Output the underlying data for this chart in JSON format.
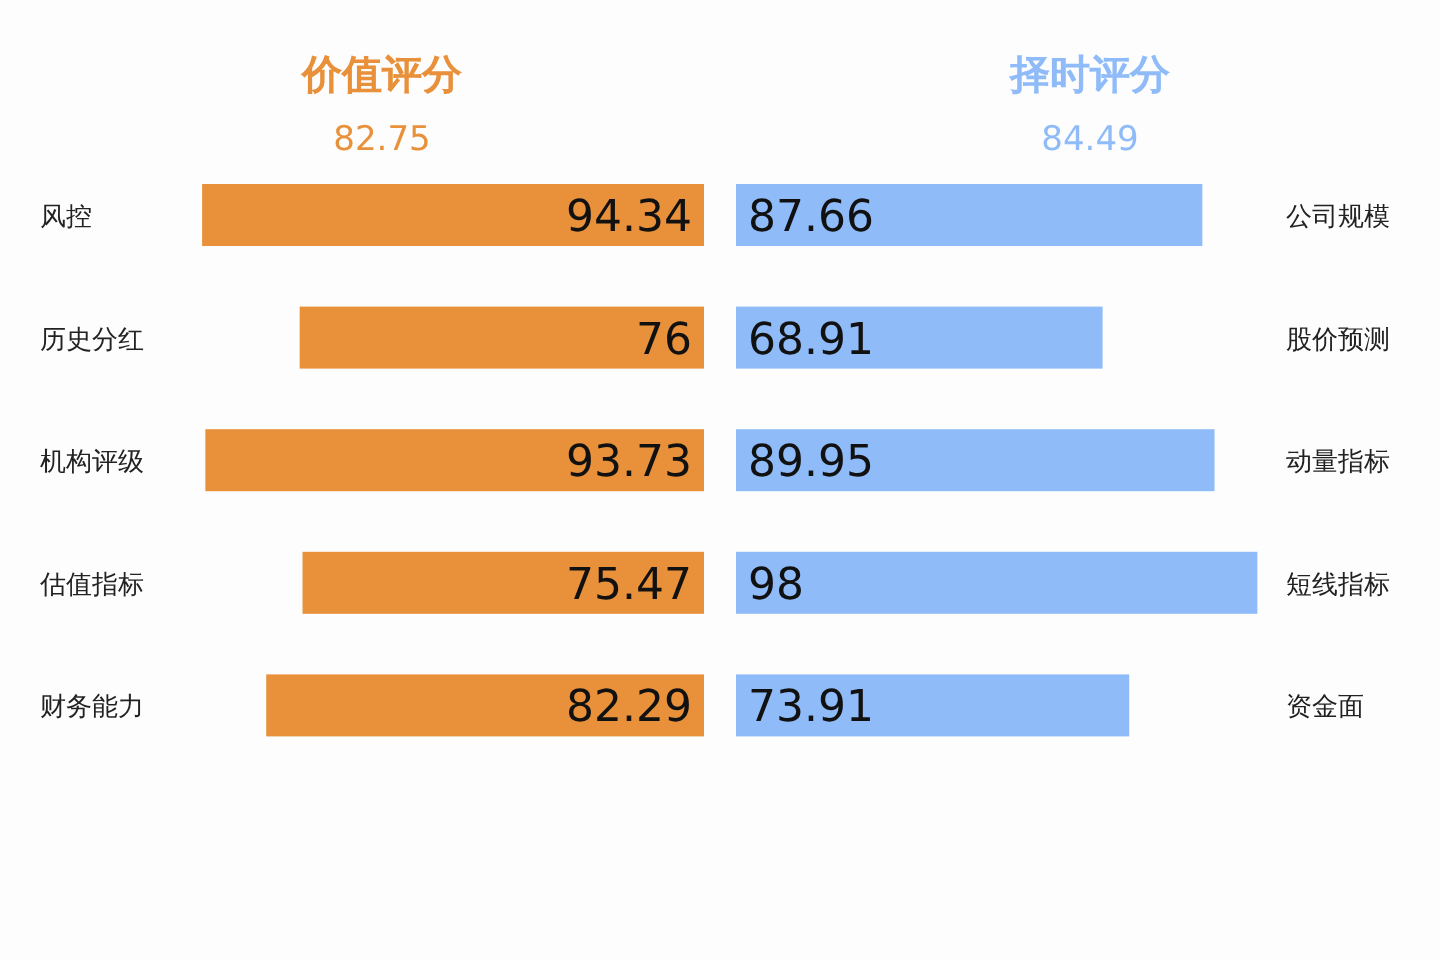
{
  "chart_data": [
    {
      "type": "bar",
      "orientation": "horizontal",
      "title": "价值评分",
      "subtitle": "82.75",
      "categories": [
        "风控",
        "历史分红",
        "机构评级",
        "估值指标",
        "财务能力"
      ],
      "values": [
        94.34,
        76,
        93.73,
        75.47,
        82.29
      ],
      "color": "#e8913a",
      "data_labels": true,
      "grid": false,
      "legend": false
    },
    {
      "type": "bar",
      "orientation": "horizontal",
      "title": "择时评分",
      "subtitle": "84.49",
      "categories": [
        "公司规模",
        "股价预测",
        "动量指标",
        "短线指标",
        "资金面"
      ],
      "values": [
        87.66,
        68.91,
        89.95,
        98,
        73.91
      ],
      "color": "#8fbcf9",
      "data_labels": true,
      "grid": false,
      "legend": false
    }
  ]
}
